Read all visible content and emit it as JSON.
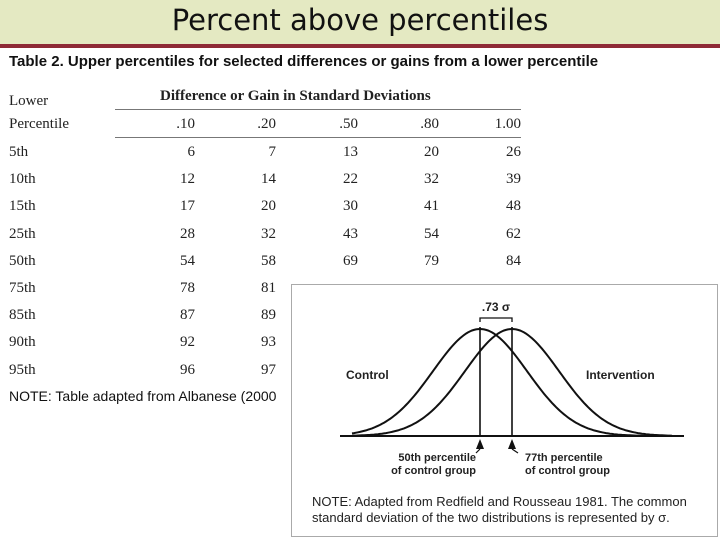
{
  "slide": {
    "title": "Percent above percentiles"
  },
  "table": {
    "heading": "Table 2.  Upper percentiles for selected differences or gains from a lower percentile",
    "header_lower": "Lower",
    "header_percentile": "Percentile",
    "header_diff": "Difference or Gain  in Standard Deviations",
    "columns": [
      ".10",
      ".20",
      ".50",
      ".80",
      "1.00"
    ],
    "rows": [
      {
        "label": "5th",
        "values": [
          "6",
          "7",
          "13",
          "20",
          "26"
        ]
      },
      {
        "label": "10th",
        "values": [
          "12",
          "14",
          "22",
          "32",
          "39"
        ]
      },
      {
        "label": "15th",
        "values": [
          "17",
          "20",
          "30",
          "41",
          "48"
        ]
      },
      {
        "label": "25th",
        "values": [
          "28",
          "32",
          "43",
          "54",
          "62"
        ]
      },
      {
        "label": "50th",
        "values": [
          "54",
          "58",
          "69",
          "79",
          "84"
        ]
      },
      {
        "label": "75th",
        "values": [
          "78",
          "81"
        ]
      },
      {
        "label": "85th",
        "values": [
          "87",
          "89"
        ]
      },
      {
        "label": "90th",
        "values": [
          "92",
          "93"
        ]
      },
      {
        "label": "95th",
        "values": [
          "96",
          "97"
        ]
      }
    ],
    "note": "NOTE: Table adapted from Albanese (2000"
  },
  "figure": {
    "sigma_label": ".73 σ",
    "control_label": "Control",
    "intervention_label": "Intervention",
    "left_marker_line1": "50th percentile",
    "left_marker_line2": "of control group",
    "right_marker_line1": "77th percentile",
    "right_marker_line2": "of control group",
    "note": "NOTE: Adapted from Redfield and Rousseau 1981. The common standard deviation of the two distributions is represented by σ."
  }
}
